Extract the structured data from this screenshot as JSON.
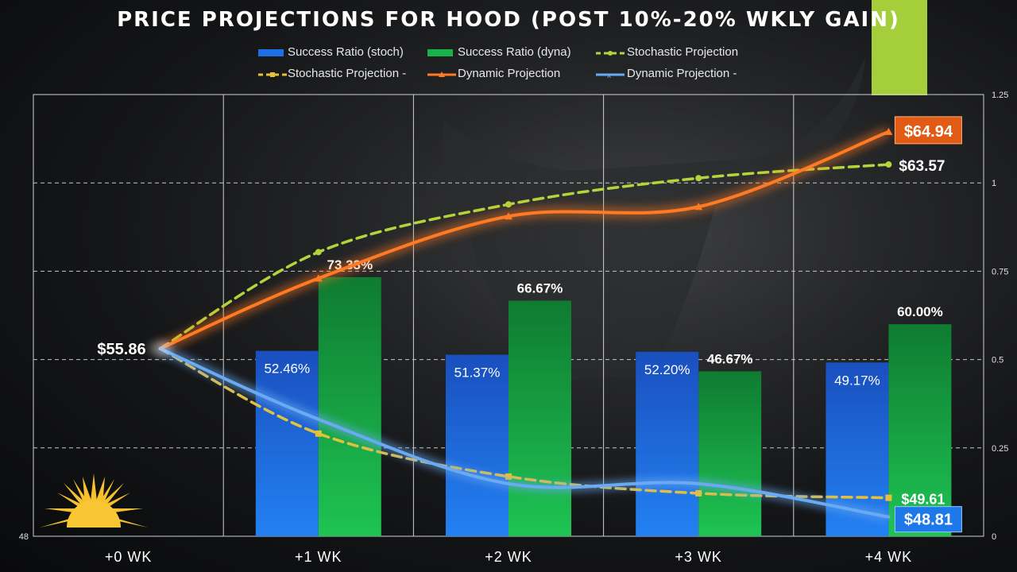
{
  "chart_data": {
    "type": "bar+line",
    "title": "PRICE PROJECTIONS FOR HOOD (POST 10%-20% WKLY GAIN)",
    "categories": [
      "+0 WK",
      "+1 WK",
      "+2 WK",
      "+3 WK",
      "+4 WK"
    ],
    "left_axis": {
      "min_label": "48",
      "price_min": 48,
      "price_max": 66.5
    },
    "right_axis": {
      "min": 0,
      "max": 1.25,
      "ticks": [
        "0",
        "0.25",
        "0.5",
        "0.75",
        "1",
        "1.25"
      ]
    },
    "bars": [
      {
        "name": "Success Ratio (stoch)",
        "color": "#1e6fe6",
        "values": [
          null,
          0.5246,
          0.5137,
          0.522,
          0.4917
        ],
        "labels": [
          "",
          "52.46%",
          "51.37%",
          "52.20%",
          "49.17%"
        ]
      },
      {
        "name": "Success Ratio (dyna)",
        "color": "#19b24a",
        "values": [
          null,
          0.7333,
          0.6667,
          0.4667,
          0.6
        ],
        "labels": [
          "",
          "73.33%",
          "66.67%",
          "46.67%",
          "60.00%"
        ]
      }
    ],
    "lines": [
      {
        "name": "Stochastic Projection",
        "color": "#b5d33b",
        "dashed": true,
        "values": [
          55.86,
          59.9,
          61.9,
          63.0,
          63.57
        ]
      },
      {
        "name": "Stochastic Projection -",
        "color": "#e7c03a",
        "dashed": true,
        "values": [
          55.86,
          52.3,
          50.5,
          49.8,
          49.61
        ]
      },
      {
        "name": "Dynamic Projection",
        "color": "#ff7a22",
        "dashed": false,
        "values": [
          55.86,
          58.8,
          61.4,
          61.8,
          64.94
        ]
      },
      {
        "name": "Dynamic Projection -",
        "color": "#6aaaf2",
        "dashed": false,
        "values": [
          55.86,
          52.9,
          50.2,
          50.2,
          48.81
        ]
      }
    ],
    "start_label": "$55.86",
    "end_labels": {
      "dynamic_up": "$64.94",
      "stochastic_up": "$63.57",
      "stochastic_down": "$49.61",
      "dynamic_down": "$48.81"
    }
  },
  "legend": {
    "row1": [
      "Success Ratio (stoch)",
      "Success Ratio (dyna)",
      "Stochastic Projection"
    ],
    "row2": [
      "Stochastic Projection -",
      "Dynamic Projection",
      "Dynamic Projection -"
    ]
  },
  "colors": {
    "lime_block": "#a4cf3a",
    "background": "#141517"
  }
}
